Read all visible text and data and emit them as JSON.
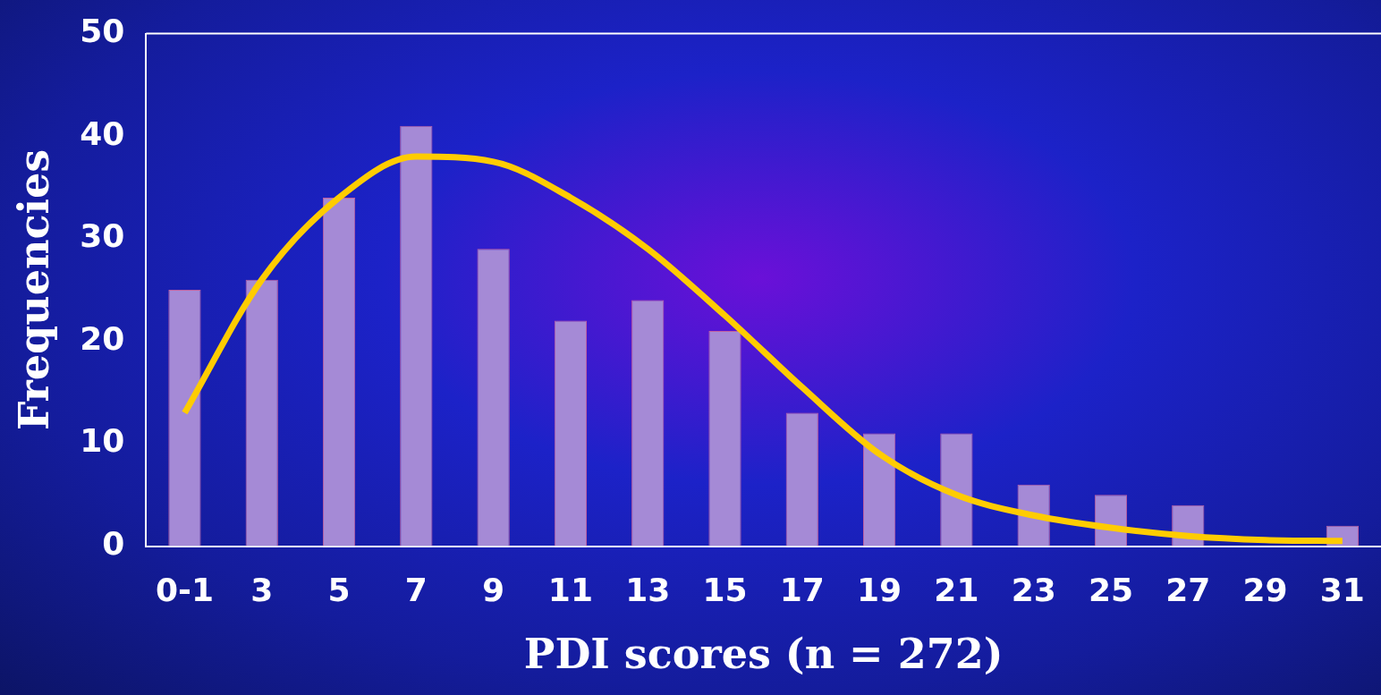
{
  "chart_data": {
    "type": "bar",
    "xlabel": "PDI scores (n = 272)",
    "ylabel": "Frequencies",
    "categories": [
      "0-1",
      "3",
      "5",
      "7",
      "9",
      "11",
      "13",
      "15",
      "17",
      "19",
      "21",
      "23",
      "25",
      "27",
      "29",
      "31"
    ],
    "series": [
      {
        "color": "#a58ad6",
        "values": [
          25,
          26,
          34,
          41,
          29,
          22,
          24,
          21,
          13,
          11,
          11,
          6,
          5,
          4,
          0,
          2
        ]
      },
      {
        "type": "line",
        "color": "#ffcc00",
        "values": [
          13,
          26,
          34,
          38,
          37.5,
          34,
          29,
          22.5,
          15.5,
          9,
          5,
          3,
          1.8,
          1,
          0.6,
          0.5
        ]
      }
    ],
    "ylim": [
      0,
      50
    ],
    "yticks": [
      0,
      10,
      20,
      30,
      40,
      50
    ],
    "grid": false,
    "legend": false,
    "marker": "none"
  }
}
